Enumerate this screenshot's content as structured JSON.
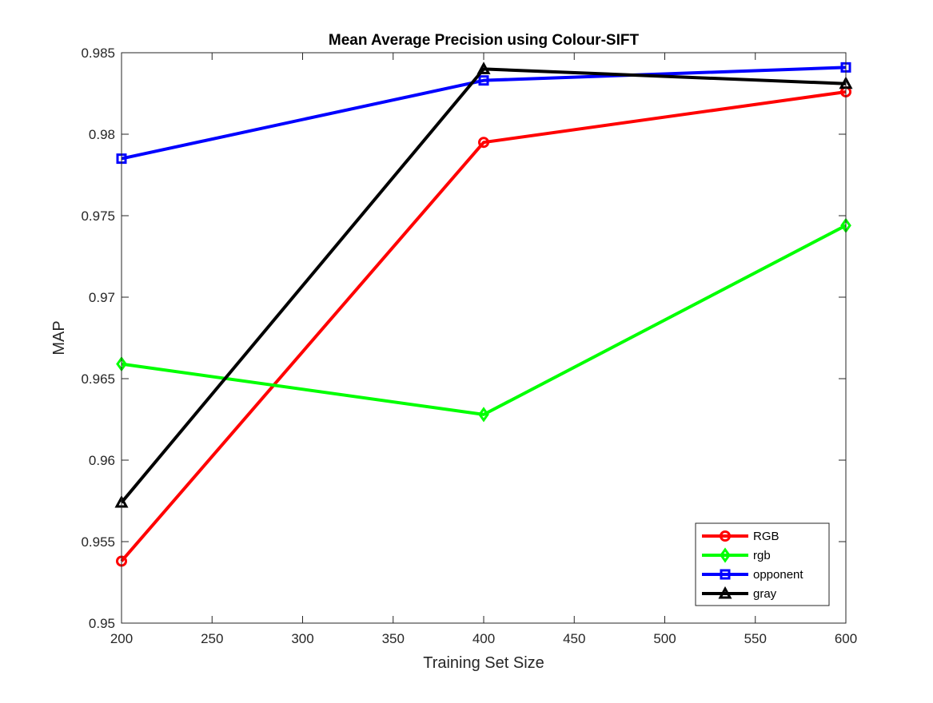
{
  "chart_data": {
    "type": "line",
    "title": "Mean Average Precision using Colour-SIFT",
    "xlabel": "Training Set Size",
    "ylabel": "MAP",
    "x": [
      200,
      400,
      600
    ],
    "xlim": [
      200,
      600
    ],
    "ylim": [
      0.95,
      0.985
    ],
    "xticks": [
      200,
      250,
      300,
      350,
      400,
      450,
      500,
      550,
      600
    ],
    "yticks": [
      "0.95",
      "0.955",
      "0.96",
      "0.965",
      "0.97",
      "0.975",
      "0.98",
      "0.985"
    ],
    "grid": false,
    "legend_position": "bottom-right",
    "series": [
      {
        "name": "RGB",
        "color": "#ff0000",
        "marker": "circle",
        "values": [
          0.9538,
          0.9795,
          0.9826
        ]
      },
      {
        "name": "rgb",
        "color": "#00ff00",
        "marker": "diamond",
        "values": [
          0.9659,
          0.9628,
          0.9744
        ]
      },
      {
        "name": "opponent",
        "color": "#0000ff",
        "marker": "square",
        "values": [
          0.9785,
          0.9833,
          0.9841
        ]
      },
      {
        "name": "gray",
        "color": "#000000",
        "marker": "triangle",
        "values": [
          0.9574,
          0.984,
          0.9831
        ]
      }
    ]
  }
}
